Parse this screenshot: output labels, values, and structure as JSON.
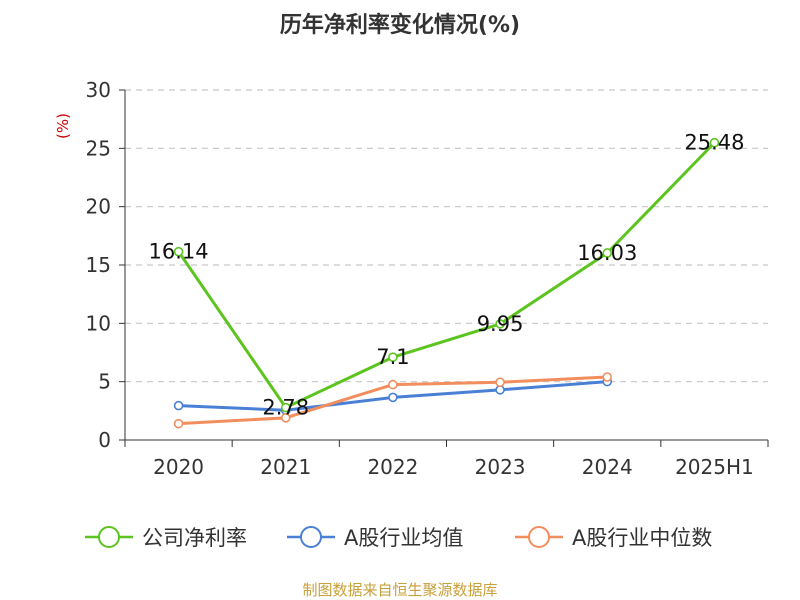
{
  "chart_data": {
    "type": "line",
    "title": "历年净利率变化情况(%)",
    "ylabel": "(%)",
    "xlabel": "",
    "categories": [
      "2020",
      "2021",
      "2022",
      "2023",
      "2024",
      "2025H1"
    ],
    "ylim": [
      0,
      30
    ],
    "yticks": [
      0,
      5,
      10,
      15,
      20,
      25,
      30
    ],
    "grid": true,
    "legend_position": "bottom",
    "series": [
      {
        "name": "公司净利率",
        "color": "#5cc41f",
        "values": [
          16.14,
          2.78,
          7.1,
          9.95,
          16.03,
          25.48
        ],
        "labels": [
          "16.14",
          "2.78",
          "7.1",
          "9.95",
          "16.03",
          "25.48"
        ]
      },
      {
        "name": "A股行业均值",
        "color": "#4a7fd6",
        "values": [
          2.95,
          2.55,
          3.65,
          4.3,
          5.0,
          null
        ]
      },
      {
        "name": "A股行业中位数",
        "color": "#f28e5e",
        "values": [
          1.4,
          1.9,
          4.75,
          4.95,
          5.4,
          null
        ]
      }
    ]
  },
  "footer": {
    "source": "制图数据来自恒生聚源数据库",
    "color": "#c8a03c"
  }
}
